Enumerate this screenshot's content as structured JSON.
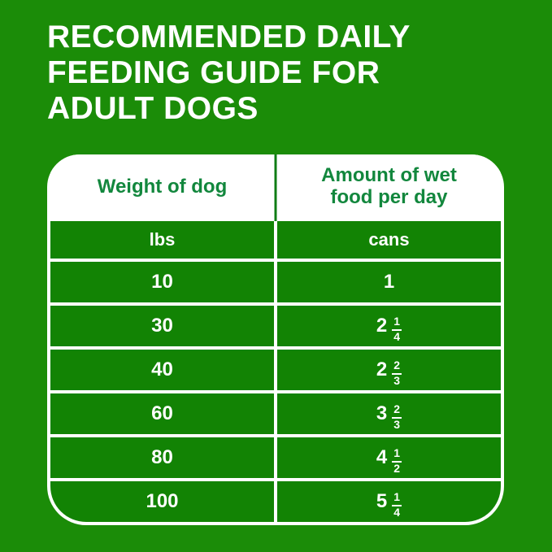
{
  "title": "RECOMMENDED DAILY\nFEEDING GUIDE FOR\nADULT DOGS",
  "table": {
    "header": {
      "col1": "Weight of dog",
      "col2": "Amount of wet food per day"
    },
    "units": {
      "col1": "lbs",
      "col2": "cans"
    },
    "rows": [
      {
        "weight": "10",
        "amount": {
          "whole": "1"
        }
      },
      {
        "weight": "30",
        "amount": {
          "whole": "2",
          "numerator": "1",
          "denominator": "4"
        }
      },
      {
        "weight": "40",
        "amount": {
          "whole": "2",
          "numerator": "2",
          "denominator": "3"
        }
      },
      {
        "weight": "60",
        "amount": {
          "whole": "3",
          "numerator": "2",
          "denominator": "3"
        }
      },
      {
        "weight": "80",
        "amount": {
          "whole": "4",
          "numerator": "1",
          "denominator": "2"
        }
      },
      {
        "weight": "100",
        "amount": {
          "whole": "5",
          "numerator": "1",
          "denominator": "4"
        }
      }
    ]
  },
  "colors": {
    "page_background": "#1b8c08",
    "cell_green": "#128304",
    "header_text_green": "#12873d",
    "header_divider_green": "#0f7d14",
    "text_white": "#ffffff"
  },
  "chart_data": {
    "type": "table",
    "title": "RECOMMENDED DAILY FEEDING GUIDE FOR ADULT DOGS",
    "columns": [
      "Weight of dog (lbs)",
      "Amount of wet food per day (cans)"
    ],
    "rows": [
      [
        "10",
        "1"
      ],
      [
        "30",
        "2 1/4"
      ],
      [
        "40",
        "2 2/3"
      ],
      [
        "60",
        "3 2/3"
      ],
      [
        "80",
        "4 1/2"
      ],
      [
        "100",
        "5 1/4"
      ]
    ]
  }
}
